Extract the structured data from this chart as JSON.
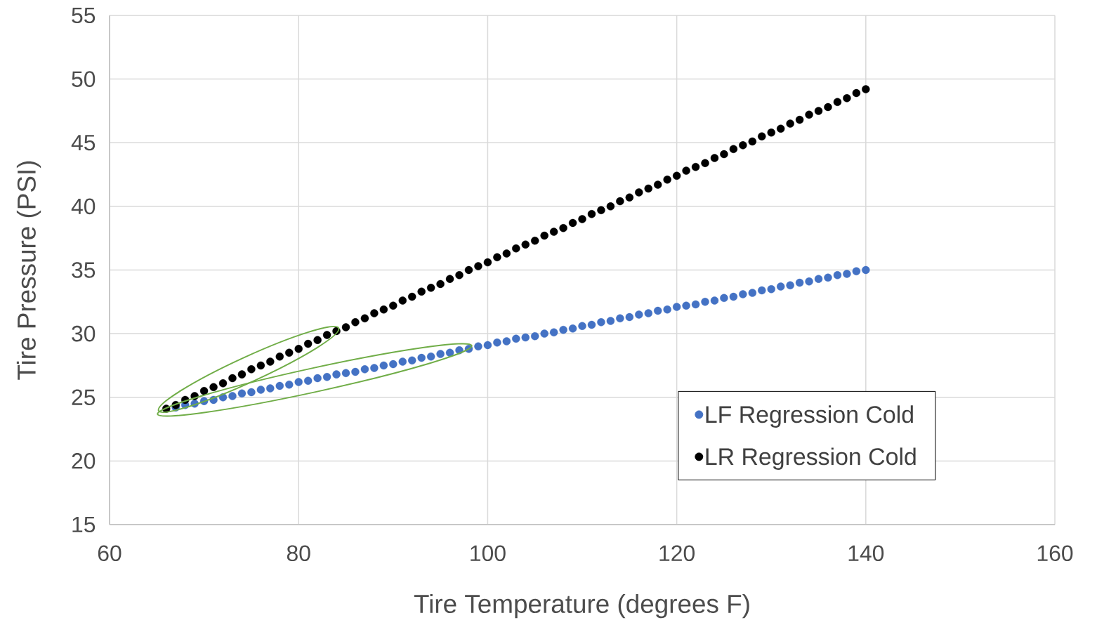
{
  "chart_data": {
    "type": "scatter",
    "xlabel": "Tire Temperature (degrees F)",
    "ylabel": "Tire Pressure (PSI)",
    "x": [
      66,
      67,
      68,
      69,
      70,
      71,
      72,
      73,
      74,
      75,
      76,
      77,
      78,
      79,
      80,
      81,
      82,
      83,
      84,
      85,
      86,
      87,
      88,
      89,
      90,
      91,
      92,
      93,
      94,
      95,
      96,
      97,
      98,
      99,
      100,
      101,
      102,
      103,
      104,
      105,
      106,
      107,
      108,
      109,
      110,
      111,
      112,
      113,
      114,
      115,
      116,
      117,
      118,
      119,
      120,
      121,
      122,
      123,
      124,
      125,
      126,
      127,
      128,
      129,
      130,
      131,
      132,
      133,
      134,
      135,
      136,
      137,
      138,
      139,
      140
    ],
    "series": [
      {
        "name": "LF Regression Cold",
        "color": "#4472c4",
        "values": [
          null,
          24.2,
          24.4,
          24.5,
          24.7,
          24.8,
          25.0,
          25.1,
          25.3,
          25.4,
          25.6,
          25.7,
          25.9,
          26.0,
          26.2,
          26.3,
          26.5,
          26.6,
          26.8,
          26.9,
          27.0,
          27.2,
          27.3,
          27.5,
          27.6,
          27.8,
          27.9,
          28.1,
          28.2,
          28.4,
          28.5,
          28.7,
          28.8,
          29.0,
          29.1,
          29.3,
          29.4,
          29.6,
          29.7,
          29.8,
          30.0,
          30.1,
          30.3,
          30.4,
          30.6,
          30.7,
          30.9,
          31.0,
          31.2,
          31.3,
          31.5,
          31.6,
          31.8,
          31.9,
          32.1,
          32.2,
          32.3,
          32.5,
          32.6,
          32.8,
          32.9,
          33.1,
          33.2,
          33.4,
          33.5,
          33.7,
          33.8,
          34.0,
          34.1,
          34.3,
          34.4,
          34.6,
          34.7,
          34.9,
          35.0
        ]
      },
      {
        "name": "LR Regression Cold",
        "color": "#000000",
        "values": [
          24.1,
          24.4,
          24.8,
          25.1,
          25.5,
          25.8,
          26.1,
          26.5,
          26.8,
          27.2,
          27.5,
          27.8,
          28.2,
          28.5,
          28.8,
          29.2,
          29.5,
          29.9,
          30.2,
          30.5,
          30.9,
          31.2,
          31.6,
          31.9,
          32.2,
          32.6,
          32.9,
          33.3,
          33.6,
          33.9,
          34.3,
          34.6,
          35.0,
          35.3,
          35.6,
          36.0,
          36.3,
          36.7,
          37.0,
          37.3,
          37.7,
          38.0,
          38.3,
          38.7,
          39.0,
          39.4,
          39.7,
          40.0,
          40.4,
          40.7,
          41.1,
          41.4,
          41.7,
          42.1,
          42.4,
          42.8,
          43.1,
          43.4,
          43.8,
          44.1,
          44.5,
          44.8,
          45.1,
          45.5,
          45.8,
          46.1,
          46.5,
          46.8,
          47.2,
          47.5,
          47.8,
          48.2,
          48.5,
          48.9,
          49.2
        ]
      }
    ],
    "xlim": [
      60,
      160
    ],
    "ylim": [
      15,
      55
    ],
    "xticks": [
      60,
      80,
      100,
      120,
      140,
      160
    ],
    "yticks": [
      15,
      20,
      25,
      30,
      35,
      40,
      45,
      50,
      55
    ],
    "grid": true,
    "legend": "bottom right",
    "marker": "circle"
  }
}
